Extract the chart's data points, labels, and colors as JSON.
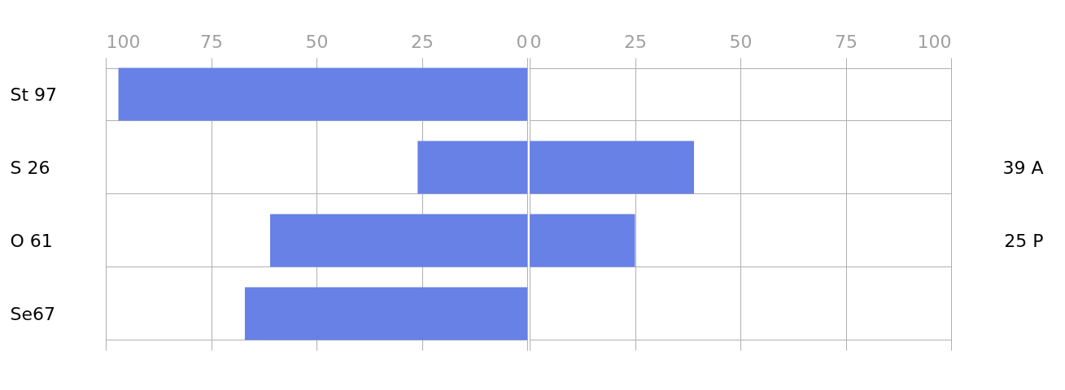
{
  "chart_data": [
    {
      "type": "bar",
      "orientation": "horizontal",
      "categories": [
        "St 97",
        "S 26",
        "O 61",
        "Se67"
      ],
      "values": [
        97,
        26,
        61,
        67
      ],
      "color": "#6881e6",
      "xlim": [
        100,
        0
      ],
      "xticks": [
        100,
        75,
        50,
        25,
        0
      ],
      "grid": true
    },
    {
      "type": "bar",
      "orientation": "horizontal",
      "categories": [
        null,
        "39 A",
        "25 P",
        null
      ],
      "values": [
        null,
        39,
        25,
        null
      ],
      "color": "#6881e6",
      "xlim": [
        0,
        100
      ],
      "xticks": [
        0,
        25,
        50,
        75,
        100
      ],
      "grid": true
    }
  ]
}
